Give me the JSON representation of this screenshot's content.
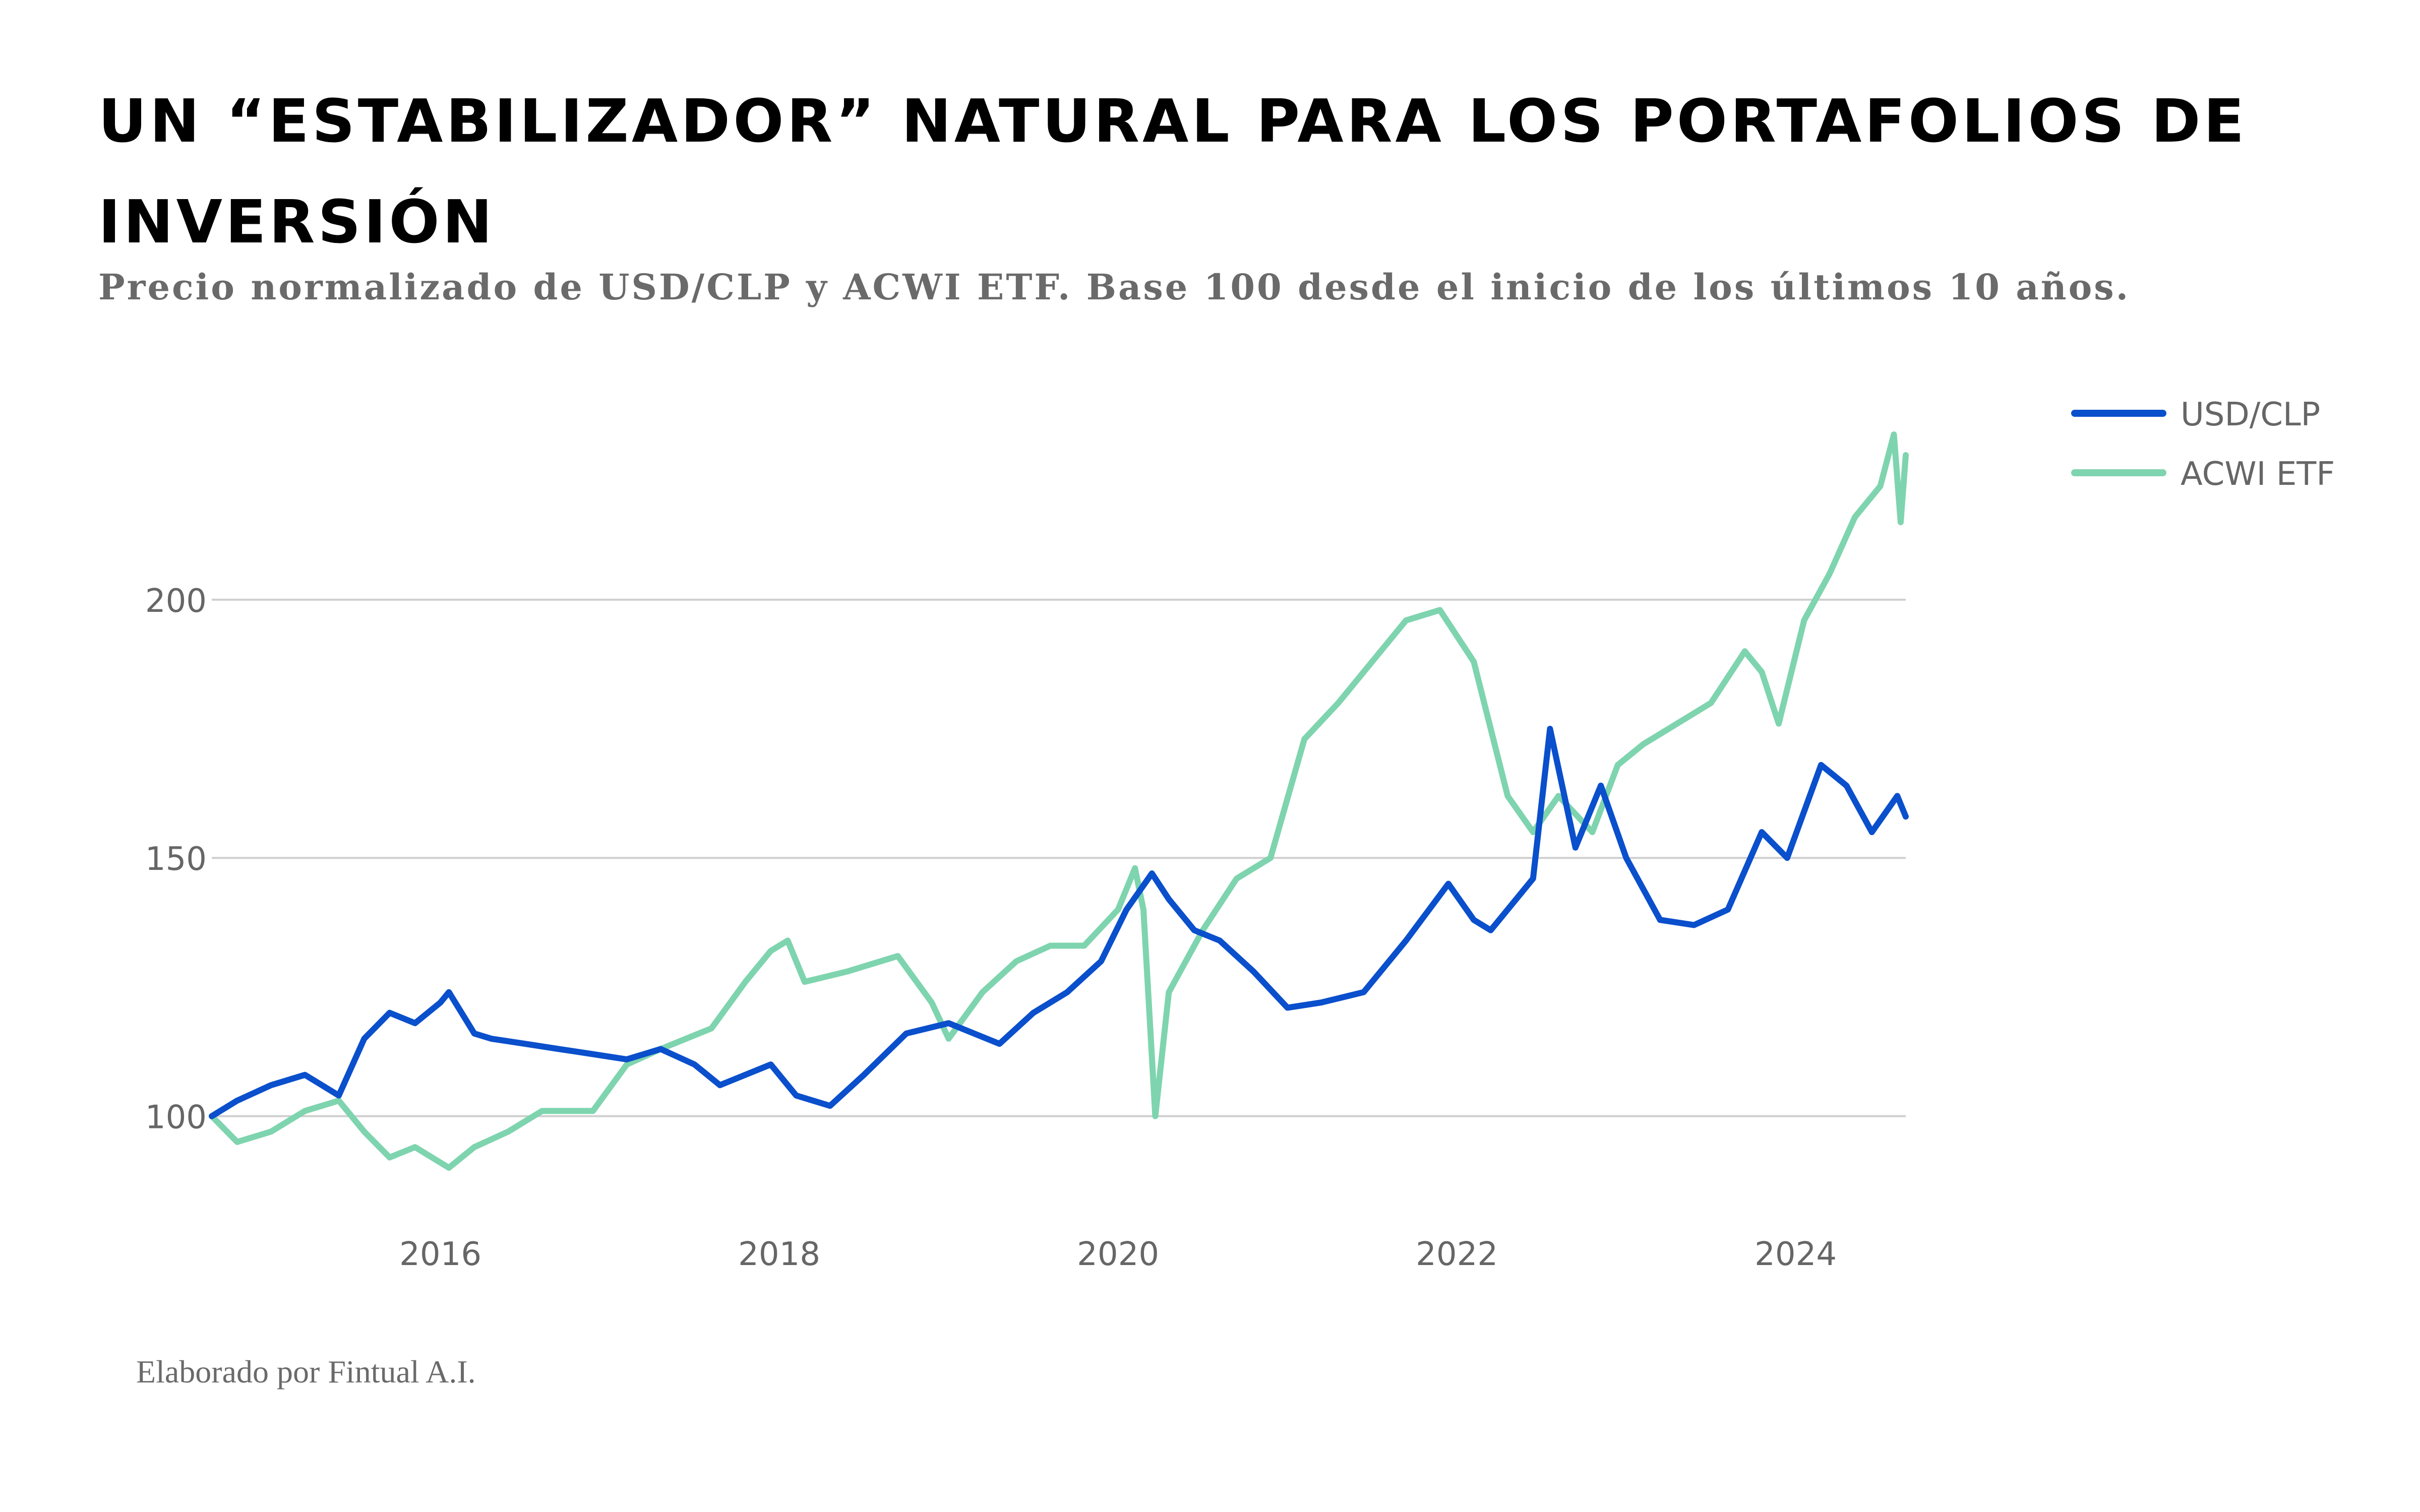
{
  "header": {
    "title": "UN “ESTABILIZADOR” NATURAL PARA LOS PORTAFOLIOS DE INVERSIÓN",
    "subtitle": "Precio normalizado de USD/CLP y ACWI ETF. Base 100 desde el inicio de los últimos 10 años."
  },
  "footer": {
    "source": "Elaborado por Fintual A.I."
  },
  "colors": {
    "usd_clp": "#0a4fcc",
    "acwi_etf": "#7ed4ae",
    "grid": "#cfcfcf",
    "tick_text": "#666666"
  },
  "chart_data": {
    "type": "line",
    "title": "",
    "xlabel": "",
    "ylabel": "",
    "xlim": [
      2014.65,
      2024.65
    ],
    "ylim": [
      78,
      240
    ],
    "y_gridlines": [
      100,
      150,
      200
    ],
    "y_tick_labels": [
      "100",
      "150",
      "200"
    ],
    "x_ticks": [
      2016,
      2018,
      2020,
      2022,
      2024
    ],
    "x_tick_labels": [
      "2016",
      "2018",
      "2020",
      "2022",
      "2024"
    ],
    "legend": {
      "position": "top-right",
      "entries": [
        "USD/CLP",
        "ACWI ETF"
      ]
    },
    "series": [
      {
        "name": "USD/CLP",
        "x": [
          2014.65,
          2014.8,
          2015.0,
          2015.2,
          2015.4,
          2015.55,
          2015.7,
          2015.85,
          2016.0,
          2016.05,
          2016.2,
          2016.3,
          2016.5,
          2016.7,
          2016.9,
          2017.1,
          2017.3,
          2017.5,
          2017.65,
          2017.8,
          2017.95,
          2018.1,
          2018.3,
          2018.5,
          2018.75,
          2019.0,
          2019.3,
          2019.5,
          2019.7,
          2019.9,
          2020.05,
          2020.2,
          2020.3,
          2020.45,
          2020.6,
          2020.8,
          2021.0,
          2021.2,
          2021.45,
          2021.7,
          2021.95,
          2022.1,
          2022.2,
          2022.3,
          2022.45,
          2022.55,
          2022.7,
          2022.85,
          2023.0,
          2023.2,
          2023.4,
          2023.6,
          2023.8,
          2023.95,
          2024.15,
          2024.3,
          2024.45,
          2024.6,
          2024.65
        ],
        "values": [
          100,
          103,
          106,
          108,
          104,
          115,
          120,
          118,
          122,
          124,
          116,
          115,
          114,
          113,
          112,
          111,
          113,
          110,
          106,
          108,
          110,
          104,
          102,
          108,
          116,
          118,
          114,
          120,
          124,
          130,
          140,
          147,
          142,
          136,
          134,
          128,
          121,
          122,
          124,
          134,
          145,
          138,
          136,
          140,
          146,
          175,
          152,
          164,
          150,
          138,
          137,
          140,
          155,
          150,
          168,
          164,
          155,
          162,
          158
        ]
      },
      {
        "name": "ACWI ETF",
        "x": [
          2014.65,
          2014.8,
          2015.0,
          2015.2,
          2015.4,
          2015.55,
          2015.7,
          2015.85,
          2016.05,
          2016.2,
          2016.4,
          2016.6,
          2016.9,
          2017.1,
          2017.3,
          2017.6,
          2017.8,
          2017.95,
          2018.05,
          2018.15,
          2018.4,
          2018.7,
          2018.9,
          2019.0,
          2019.2,
          2019.4,
          2019.6,
          2019.8,
          2020.0,
          2020.1,
          2020.15,
          2020.22,
          2020.3,
          2020.5,
          2020.7,
          2020.9,
          2021.1,
          2021.3,
          2021.5,
          2021.7,
          2021.9,
          2022.1,
          2022.3,
          2022.45,
          2022.6,
          2022.8,
          2022.95,
          2023.1,
          2023.3,
          2023.5,
          2023.7,
          2023.8,
          2023.9,
          2024.05,
          2024.2,
          2024.35,
          2024.5,
          2024.58,
          2024.62,
          2024.65
        ],
        "values": [
          100,
          95,
          97,
          101,
          103,
          97,
          92,
          94,
          90,
          94,
          97,
          101,
          101,
          110,
          113,
          117,
          126,
          132,
          134,
          126,
          128,
          131,
          122,
          115,
          124,
          130,
          133,
          133,
          140,
          148,
          140,
          100,
          124,
          136,
          146,
          150,
          173,
          180,
          188,
          196,
          198,
          188,
          162,
          155,
          162,
          155,
          168,
          172,
          176,
          180,
          190,
          186,
          176,
          196,
          205,
          216,
          222,
          232,
          215,
          228
        ]
      }
    ]
  }
}
